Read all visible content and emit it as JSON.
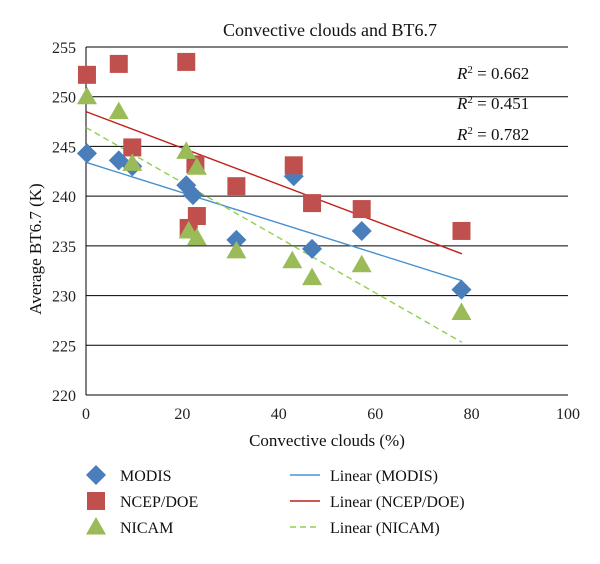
{
  "chart_data": {
    "type": "scatter",
    "title": "Convective clouds and BT6.7",
    "xlabel": "Convective clouds (%)",
    "ylabel": "Average BT6.7 (K)",
    "xlim": [
      0,
      100
    ],
    "ylim": [
      220,
      255
    ],
    "xticks": [
      0,
      20,
      40,
      60,
      80,
      100
    ],
    "yticks": [
      220,
      225,
      230,
      235,
      240,
      245,
      250,
      255
    ],
    "grid": "horizontal",
    "legend_position": "bottom",
    "series": [
      {
        "name": "MODIS",
        "marker": "diamond",
        "color": "#4a7ebb",
        "x": [
          0.2,
          6.8,
          9.6,
          20.8,
          22.2,
          31.2,
          43.1,
          46.9,
          57.2,
          77.9
        ],
        "y": [
          244.3,
          243.6,
          243.0,
          241.1,
          240.1,
          235.6,
          242.0,
          234.7,
          236.5,
          230.6
        ]
      },
      {
        "name": "NCEP/DOE",
        "marker": "square",
        "color": "#c0504d",
        "x": [
          0.2,
          6.8,
          9.6,
          20.8,
          21.3,
          22.7,
          23.0,
          31.2,
          43.1,
          46.9,
          57.2,
          77.9
        ],
        "y": [
          252.2,
          253.3,
          244.9,
          253.5,
          236.8,
          243.2,
          238.0,
          241.0,
          243.1,
          239.3,
          238.7,
          236.5
        ]
      },
      {
        "name": "NICAM",
        "marker": "triangle",
        "color": "#9bbb59",
        "x": [
          0.2,
          6.8,
          9.6,
          20.8,
          21.3,
          23.0,
          23.0,
          31.2,
          42.8,
          46.9,
          57.2,
          77.9
        ],
        "y": [
          250.0,
          248.5,
          243.3,
          244.5,
          236.5,
          242.9,
          235.8,
          234.5,
          233.5,
          231.8,
          233.1,
          228.3
        ]
      }
    ],
    "trendlines": [
      {
        "name": "Linear (MODIS)",
        "color": "#4a90d0",
        "style": "solid",
        "x": [
          0,
          78
        ],
        "y": [
          243.4,
          231.5
        ],
        "r2_label": "R² = 0.451"
      },
      {
        "name": "Linear (NCEP/DOE)",
        "color": "#c0201a",
        "style": "solid",
        "x": [
          0,
          78
        ],
        "y": [
          248.5,
          234.2
        ],
        "r2_label": "R² = 0.662"
      },
      {
        "name": "Linear (NICAM)",
        "color": "#8fd14f",
        "style": "dashed",
        "x": [
          0,
          78
        ],
        "y": [
          246.9,
          225.3
        ],
        "r2_label": "R² = 0.782"
      }
    ],
    "r2_annotations": [
      {
        "r": "R",
        "sup": "2",
        "rest": " = 0.662"
      },
      {
        "r": "R",
        "sup": "2",
        "rest": " = 0.451"
      },
      {
        "r": "R",
        "sup": "2",
        "rest": " = 0.782"
      }
    ]
  }
}
